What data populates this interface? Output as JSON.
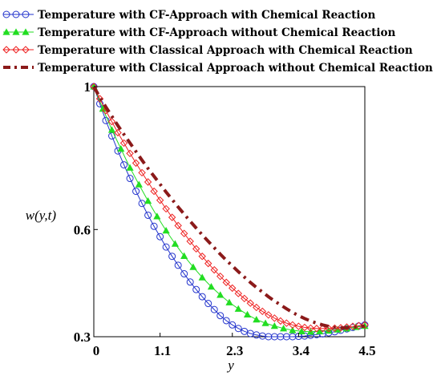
{
  "chart_data": {
    "type": "line",
    "title": "",
    "xlabel": "y",
    "ylabel": "w(y,t)",
    "xlim": [
      0,
      4.5
    ],
    "ylim": [
      0.3,
      1
    ],
    "x_ticks": [
      "0",
      "1.1",
      "2.3",
      "3.4",
      "4.5"
    ],
    "x_tick_values": [
      0,
      1.1,
      2.3,
      3.4,
      4.5
    ],
    "y_ticks": [
      "0.3",
      "0.6",
      "1"
    ],
    "y_tick_values": [
      0.3,
      0.6,
      1.0
    ],
    "grid": false,
    "legend_position": "top",
    "series": [
      {
        "name": "Temperature with CF-Approach with Chemical Reaction",
        "color": "#2233cc",
        "marker": "circle",
        "x": [
          0,
          0.1,
          0.2,
          0.3,
          0.4,
          0.5,
          0.6,
          0.7,
          0.8,
          0.9,
          1.0,
          1.1,
          1.2,
          1.3,
          1.4,
          1.5,
          1.6,
          1.7,
          1.8,
          1.9,
          2.0,
          2.1,
          2.2,
          2.3,
          2.4,
          2.5,
          2.6,
          2.7,
          2.8,
          2.9,
          3.0,
          3.1,
          3.2,
          3.3,
          3.4,
          3.5,
          3.6,
          3.7,
          3.8,
          3.9,
          4.0,
          4.1,
          4.2,
          4.3,
          4.4,
          4.5
        ],
        "y": [
          1.0,
          0.952,
          0.905,
          0.862,
          0.82,
          0.781,
          0.743,
          0.707,
          0.673,
          0.64,
          0.609,
          0.58,
          0.551,
          0.525,
          0.5,
          0.476,
          0.453,
          0.432,
          0.412,
          0.393,
          0.376,
          0.359,
          0.345,
          0.333,
          0.323,
          0.315,
          0.309,
          0.305,
          0.302,
          0.3,
          0.3,
          0.3,
          0.3,
          0.3,
          0.301,
          0.302,
          0.304,
          0.306,
          0.308,
          0.311,
          0.314,
          0.318,
          0.322,
          0.326,
          0.33,
          0.333
        ]
      },
      {
        "name": "Temperature with CF-Approach without Chemical Reaction",
        "color": "#22dd22",
        "marker": "triangle",
        "x": [
          0,
          0.15,
          0.3,
          0.45,
          0.6,
          0.75,
          0.9,
          1.05,
          1.2,
          1.35,
          1.5,
          1.65,
          1.8,
          1.95,
          2.1,
          2.25,
          2.4,
          2.55,
          2.7,
          2.85,
          3.0,
          3.15,
          3.3,
          3.45,
          3.6,
          3.75,
          3.9,
          4.05,
          4.2,
          4.35,
          4.5
        ],
        "y": [
          1.0,
          0.938,
          0.879,
          0.826,
          0.773,
          0.726,
          0.68,
          0.637,
          0.597,
          0.56,
          0.526,
          0.495,
          0.466,
          0.44,
          0.417,
          0.396,
          0.378,
          0.362,
          0.348,
          0.338,
          0.33,
          0.323,
          0.318,
          0.315,
          0.314,
          0.315,
          0.317,
          0.32,
          0.323,
          0.327,
          0.33
        ]
      },
      {
        "name": "Temperature with Classical Approach with Chemical Reaction",
        "color": "#ee2222",
        "marker": "diamond",
        "x": [
          0,
          0.1,
          0.2,
          0.3,
          0.4,
          0.5,
          0.6,
          0.7,
          0.8,
          0.9,
          1.0,
          1.1,
          1.2,
          1.3,
          1.4,
          1.5,
          1.6,
          1.7,
          1.8,
          1.9,
          2.0,
          2.1,
          2.2,
          2.3,
          2.4,
          2.5,
          2.6,
          2.7,
          2.8,
          2.9,
          3.0,
          3.1,
          3.2,
          3.3,
          3.4,
          3.5,
          3.6,
          3.7,
          3.8,
          3.9,
          4.0,
          4.1,
          4.2,
          4.3,
          4.4,
          4.5
        ],
        "y": [
          1.0,
          0.966,
          0.933,
          0.902,
          0.871,
          0.842,
          0.813,
          0.786,
          0.759,
          0.733,
          0.707,
          0.682,
          0.658,
          0.634,
          0.611,
          0.589,
          0.567,
          0.546,
          0.525,
          0.505,
          0.487,
          0.469,
          0.452,
          0.436,
          0.421,
          0.407,
          0.394,
          0.382,
          0.371,
          0.361,
          0.352,
          0.344,
          0.338,
          0.333,
          0.329,
          0.326,
          0.324,
          0.323,
          0.323,
          0.323,
          0.324,
          0.325,
          0.327,
          0.329,
          0.331,
          0.333
        ]
      },
      {
        "name": "Temperature with Classical Approach without Chemical Reaction",
        "color": "#8b1a1a",
        "marker": "dashdot",
        "x": [
          0,
          0.1,
          0.2,
          0.3,
          0.4,
          0.5,
          0.6,
          0.7,
          0.8,
          0.9,
          1.0,
          1.1,
          1.2,
          1.3,
          1.4,
          1.5,
          1.6,
          1.7,
          1.8,
          1.9,
          2.0,
          2.1,
          2.2,
          2.3,
          2.4,
          2.5,
          2.6,
          2.7,
          2.8,
          2.9,
          3.0,
          3.1,
          3.2,
          3.3,
          3.4,
          3.5,
          3.6,
          3.7,
          3.8,
          3.9,
          4.0,
          4.1,
          4.2,
          4.3,
          4.4,
          4.5
        ],
        "y": [
          1.0,
          0.97,
          0.943,
          0.917,
          0.891,
          0.866,
          0.842,
          0.818,
          0.794,
          0.771,
          0.749,
          0.727,
          0.705,
          0.684,
          0.663,
          0.643,
          0.623,
          0.604,
          0.585,
          0.567,
          0.549,
          0.531,
          0.514,
          0.498,
          0.482,
          0.467,
          0.452,
          0.438,
          0.425,
          0.412,
          0.4,
          0.389,
          0.378,
          0.368,
          0.359,
          0.351,
          0.344,
          0.338,
          0.333,
          0.329,
          0.326,
          0.325,
          0.325,
          0.326,
          0.328,
          0.33
        ]
      }
    ]
  }
}
